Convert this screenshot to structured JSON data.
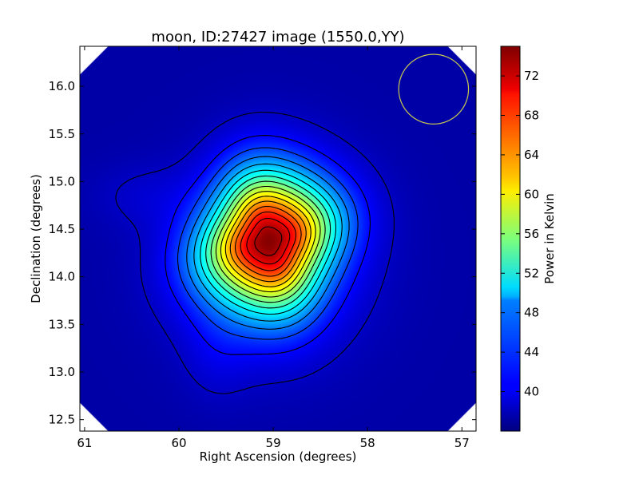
{
  "chart_data": {
    "type": "heatmap",
    "title": "moon, ID:27427 image (1550.0,YY)",
    "xlabel": "Right Ascension (degrees)",
    "ylabel": "Declination (degrees)",
    "colorbar_label": "Power in Kelvin",
    "x_ticks": [
      {
        "value": 61,
        "label": "61"
      },
      {
        "value": 60,
        "label": "60"
      },
      {
        "value": 59,
        "label": "59"
      },
      {
        "value": 58,
        "label": "58"
      },
      {
        "value": 57,
        "label": "57"
      }
    ],
    "y_ticks": [
      {
        "value": 12.5,
        "label": "12.5"
      },
      {
        "value": 13.0,
        "label": "13.0"
      },
      {
        "value": 13.5,
        "label": "13.5"
      },
      {
        "value": 14.0,
        "label": "14.0"
      },
      {
        "value": 14.5,
        "label": "14.5"
      },
      {
        "value": 15.0,
        "label": "15.0"
      },
      {
        "value": 15.5,
        "label": "15.5"
      },
      {
        "value": 16.0,
        "label": "16.0"
      }
    ],
    "colorbar_ticks": [
      {
        "value": 40,
        "label": "40"
      },
      {
        "value": 44,
        "label": "44"
      },
      {
        "value": 48,
        "label": "48"
      },
      {
        "value": 52,
        "label": "52"
      },
      {
        "value": 56,
        "label": "56"
      },
      {
        "value": 60,
        "label": "60"
      },
      {
        "value": 64,
        "label": "64"
      },
      {
        "value": 68,
        "label": "68"
      },
      {
        "value": 72,
        "label": "72"
      }
    ],
    "xlim": [
      61.05,
      56.85
    ],
    "ylim": [
      12.38,
      16.42
    ],
    "clim": [
      36.0,
      75.0
    ],
    "colormap": "jet",
    "background_level": 37.5,
    "peak": {
      "ra": 59.05,
      "dec": 14.39,
      "value": 74.5
    },
    "beam_circle": {
      "ra": 57.3,
      "dec": 15.97,
      "radius_deg": 0.37,
      "color": "#c8c850"
    },
    "grid": false
  }
}
